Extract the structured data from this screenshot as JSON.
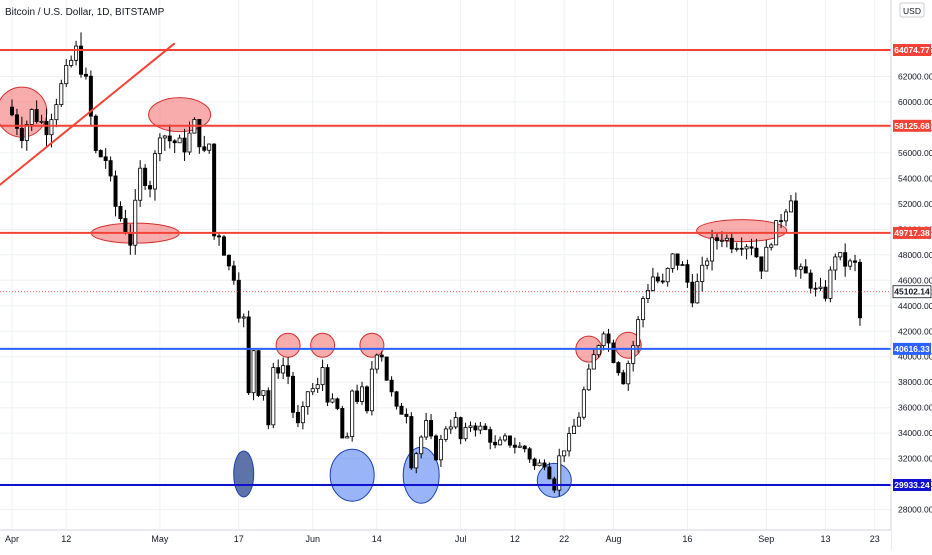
{
  "header": {
    "title": "Bitcoin / U.S. Dollar, 1D, BITSTAMP",
    "currency": "USD"
  },
  "colors": {
    "resistance": "#f44336",
    "support_light": "#2962ff",
    "support_dark": "#1010d0",
    "candle": "#000000",
    "red_zone_fill": "rgba(244,90,90,0.5)",
    "red_zone_stroke": "#d32f2f",
    "blue_zone_fill": "rgba(70,120,240,0.55)",
    "blue_zone_stroke": "#1a3fb0",
    "dark_blue_zone_fill": "rgba(40,70,140,0.75)",
    "current_price_line": "#d32f2f"
  },
  "chart_data": {
    "type": "candlestick",
    "title": "Bitcoin / U.S. Dollar, 1D, BITSTAMP",
    "y_unit": "USD",
    "ylim": [
      26400,
      68000
    ],
    "y_ticks": [
      28000,
      30000,
      32000,
      34000,
      36000,
      38000,
      40000,
      42000,
      44000,
      46000,
      48000,
      50000,
      52000,
      54000,
      56000,
      58000,
      60000,
      62000,
      64000
    ],
    "x_start": "2021-04-01",
    "x_end": "2021-09-23",
    "x_ticks": [
      {
        "date": "2021-04-01",
        "label": "Apr"
      },
      {
        "date": "2021-04-12",
        "label": "12"
      },
      {
        "date": "2021-05-01",
        "label": "May"
      },
      {
        "date": "2021-05-17",
        "label": "17"
      },
      {
        "date": "2021-06-01",
        "label": "Jun"
      },
      {
        "date": "2021-06-14",
        "label": "14"
      },
      {
        "date": "2021-07-01",
        "label": "Jul"
      },
      {
        "date": "2021-07-12",
        "label": "12"
      },
      {
        "date": "2021-07-22",
        "label": "22"
      },
      {
        "date": "2021-08-01",
        "label": "Aug"
      },
      {
        "date": "2021-08-16",
        "label": "16"
      },
      {
        "date": "2021-09-01",
        "label": "Sep"
      },
      {
        "date": "2021-09-13",
        "label": "13"
      },
      {
        "date": "2021-09-23",
        "label": "23"
      }
    ],
    "close_anchors": [
      [
        "2021-04-01",
        59000
      ],
      [
        "2021-04-03",
        57500
      ],
      [
        "2021-04-05",
        59200
      ],
      [
        "2021-04-08",
        58000
      ],
      [
        "2021-04-10",
        60200
      ],
      [
        "2021-04-13",
        63200
      ],
      [
        "2021-04-14",
        64000
      ],
      [
        "2021-04-16",
        61500
      ],
      [
        "2021-04-18",
        56000
      ],
      [
        "2021-04-20",
        55500
      ],
      [
        "2021-04-22",
        51800
      ],
      [
        "2021-04-24",
        50000
      ],
      [
        "2021-04-25",
        49000
      ],
      [
        "2021-04-27",
        54500
      ],
      [
        "2021-04-29",
        53500
      ],
      [
        "2021-05-01",
        57800
      ],
      [
        "2021-05-03",
        57000
      ],
      [
        "2021-05-06",
        56500
      ],
      [
        "2021-05-08",
        58200
      ],
      [
        "2021-05-10",
        55800
      ],
      [
        "2021-05-11",
        56700
      ],
      [
        "2021-05-12",
        49500
      ],
      [
        "2021-05-13",
        49700
      ],
      [
        "2021-05-15",
        47000
      ],
      [
        "2021-05-16",
        46400
      ],
      [
        "2021-05-17",
        43500
      ],
      [
        "2021-05-18",
        42900
      ],
      [
        "2021-05-19",
        37000
      ],
      [
        "2021-05-20",
        40600
      ],
      [
        "2021-05-21",
        37300
      ],
      [
        "2021-05-22",
        37500
      ],
      [
        "2021-05-23",
        34700
      ],
      [
        "2021-05-24",
        38800
      ],
      [
        "2021-05-26",
        39300
      ],
      [
        "2021-05-27",
        38500
      ],
      [
        "2021-05-28",
        35700
      ],
      [
        "2021-05-29",
        34600
      ],
      [
        "2021-05-30",
        35700
      ],
      [
        "2021-05-31",
        37300
      ],
      [
        "2021-06-02",
        37600
      ],
      [
        "2021-06-03",
        39200
      ],
      [
        "2021-06-04",
        36800
      ],
      [
        "2021-06-06",
        35800
      ],
      [
        "2021-06-07",
        33600
      ],
      [
        "2021-06-08",
        33400
      ],
      [
        "2021-06-09",
        37400
      ],
      [
        "2021-06-10",
        36700
      ],
      [
        "2021-06-11",
        37300
      ],
      [
        "2021-06-12",
        35500
      ],
      [
        "2021-06-13",
        39100
      ],
      [
        "2021-06-14",
        40500
      ],
      [
        "2021-06-15",
        40200
      ],
      [
        "2021-06-16",
        38300
      ],
      [
        "2021-06-18",
        35800
      ],
      [
        "2021-06-20",
        35600
      ],
      [
        "2021-06-21",
        31600
      ],
      [
        "2021-06-22",
        32500
      ],
      [
        "2021-06-23",
        33700
      ],
      [
        "2021-06-24",
        34700
      ],
      [
        "2021-06-26",
        32200
      ],
      [
        "2021-06-28",
        34500
      ],
      [
        "2021-06-30",
        35000
      ],
      [
        "2021-07-01",
        33500
      ],
      [
        "2021-07-03",
        34700
      ],
      [
        "2021-07-06",
        34200
      ],
      [
        "2021-07-08",
        32900
      ],
      [
        "2021-07-10",
        33500
      ],
      [
        "2021-07-12",
        33000
      ],
      [
        "2021-07-14",
        32800
      ],
      [
        "2021-07-16",
        31400
      ],
      [
        "2021-07-18",
        31700
      ],
      [
        "2021-07-20",
        29800
      ],
      [
        "2021-07-21",
        32100
      ],
      [
        "2021-07-23",
        33600
      ],
      [
        "2021-07-25",
        35400
      ],
      [
        "2021-07-26",
        37300
      ],
      [
        "2021-07-28",
        40000
      ],
      [
        "2021-07-30",
        42200
      ],
      [
        "2021-08-01",
        39900
      ],
      [
        "2021-08-03",
        38200
      ],
      [
        "2021-08-05",
        40900
      ],
      [
        "2021-08-07",
        44600
      ],
      [
        "2021-08-09",
        46300
      ],
      [
        "2021-08-11",
        45600
      ],
      [
        "2021-08-13",
        47800
      ],
      [
        "2021-08-15",
        47000
      ],
      [
        "2021-08-17",
        44700
      ],
      [
        "2021-08-19",
        46700
      ],
      [
        "2021-08-21",
        48900
      ],
      [
        "2021-08-23",
        49500
      ],
      [
        "2021-08-25",
        48900
      ],
      [
        "2021-08-27",
        49000
      ],
      [
        "2021-08-29",
        48800
      ],
      [
        "2021-08-31",
        47100
      ],
      [
        "2021-09-02",
        49300
      ],
      [
        "2021-09-05",
        51800
      ],
      [
        "2021-09-06",
        52700
      ],
      [
        "2021-09-07",
        46800
      ],
      [
        "2021-09-09",
        46400
      ],
      [
        "2021-09-11",
        45100
      ],
      [
        "2021-09-13",
        44900
      ],
      [
        "2021-09-15",
        48100
      ],
      [
        "2021-09-17",
        47300
      ],
      [
        "2021-09-19",
        47200
      ],
      [
        "2021-09-20",
        43000
      ]
    ],
    "horizontal_levels": [
      {
        "value": 64074.77,
        "label": "64074.77",
        "kind": "resistance"
      },
      {
        "value": 58125.68,
        "label": "58125.68",
        "kind": "resistance"
      },
      {
        "value": 49717.38,
        "label": "49717.38",
        "kind": "resistance"
      },
      {
        "value": 40616.33,
        "label": "40616.33",
        "kind": "support_light"
      },
      {
        "value": 29933.24,
        "label": "29933.24",
        "kind": "support_dark"
      }
    ],
    "current_price": {
      "value": 45102.14,
      "label": "45102.14"
    },
    "trendline": {
      "from": {
        "date": "2021-03-20",
        "value": 50500
      },
      "to": {
        "date": "2021-05-04",
        "value": 64600
      }
    },
    "zones": [
      {
        "date": "2021-04-03",
        "value": 59200,
        "color": "red"
      },
      {
        "date": "2021-05-05",
        "value": 59000,
        "color": "red"
      },
      {
        "date": "2021-04-26",
        "value": 49700,
        "color": "red"
      },
      {
        "date": "2021-05-27",
        "value": 40900,
        "color": "red"
      },
      {
        "date": "2021-06-03",
        "value": 40900,
        "color": "red"
      },
      {
        "date": "2021-06-13",
        "value": 40900,
        "color": "red"
      },
      {
        "date": "2021-07-27",
        "value": 40600,
        "color": "red"
      },
      {
        "date": "2021-08-04",
        "value": 40900,
        "color": "red"
      },
      {
        "date": "2021-08-27",
        "value": 49900,
        "color": "red"
      },
      {
        "date": "2021-05-18",
        "value": 30800,
        "color": "dark_blue"
      },
      {
        "date": "2021-06-09",
        "value": 30700,
        "color": "blue"
      },
      {
        "date": "2021-06-23",
        "value": 30700,
        "color": "blue"
      },
      {
        "date": "2021-07-20",
        "value": 30300,
        "color": "blue"
      }
    ]
  }
}
